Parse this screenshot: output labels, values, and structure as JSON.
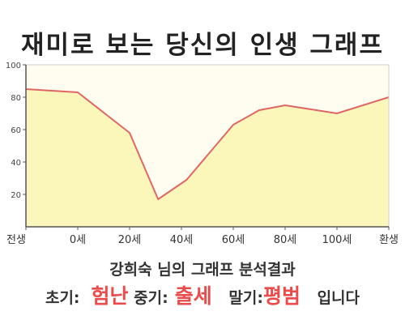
{
  "title": "재미로 보는 당신의 인생 그래프",
  "chart_data": {
    "type": "area",
    "x_labels": [
      "전생",
      "0세",
      "20세",
      "40세",
      "60세",
      "80세",
      "100세",
      "환생"
    ],
    "y_ticks": [
      20,
      40,
      60,
      80,
      100
    ],
    "ylim": [
      0,
      100
    ],
    "points": [
      {
        "x": 0,
        "y": 85
      },
      {
        "x": 1,
        "y": 83
      },
      {
        "x": 2,
        "y": 58
      },
      {
        "x": 2.55,
        "y": 17
      },
      {
        "x": 3.1,
        "y": 29
      },
      {
        "x": 4,
        "y": 63
      },
      {
        "x": 4.5,
        "y": 72
      },
      {
        "x": 5,
        "y": 75
      },
      {
        "x": 6,
        "y": 70
      },
      {
        "x": 7,
        "y": 80
      }
    ],
    "colors": {
      "line": "#e06666",
      "fill": "#fbf7bb",
      "plot_bg": "#fffdf0"
    }
  },
  "result": {
    "line1": "강희숙 님의 그래프 분석결과",
    "early_label": "초기:",
    "early_value": "험난",
    "mid_label": "중기:",
    "mid_value": "출세",
    "late_label": "말기:",
    "late_value": "평범",
    "suffix": "입니다"
  }
}
